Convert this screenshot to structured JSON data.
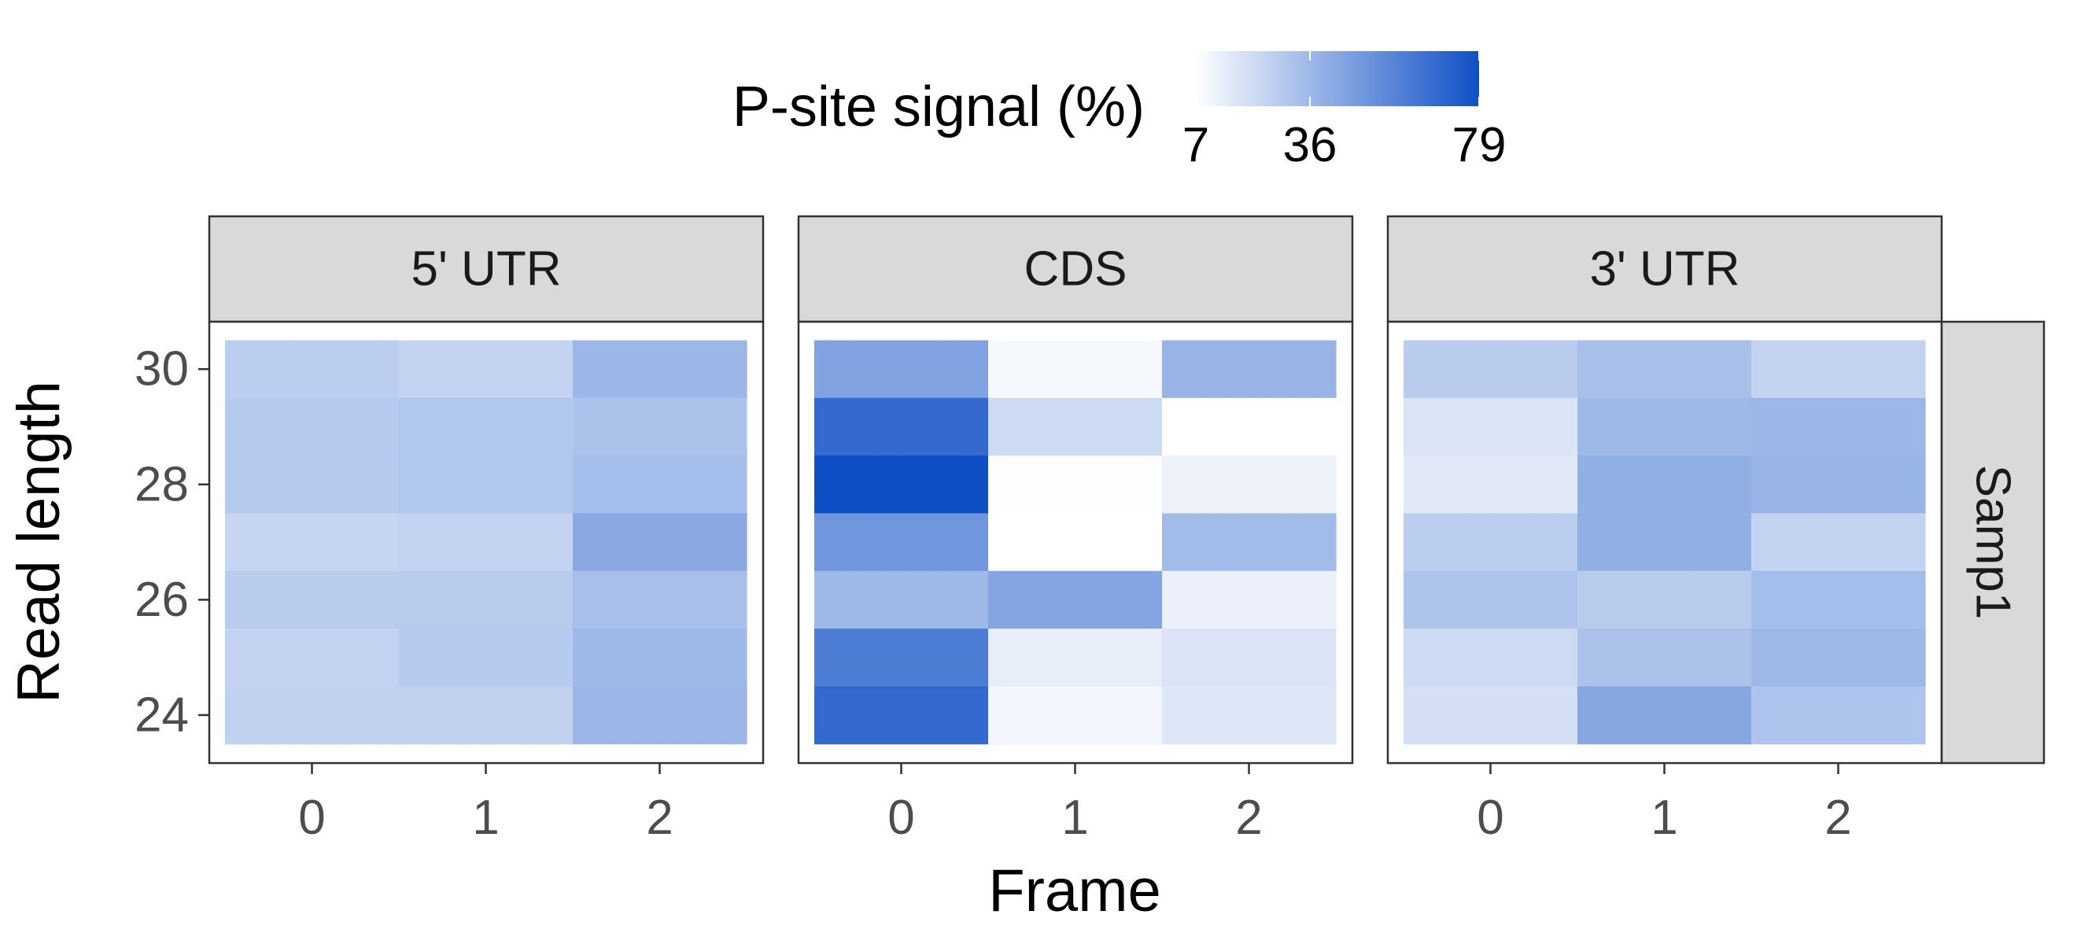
{
  "chart_data": {
    "type": "heatmap",
    "legend": {
      "title": "P-site signal (%)",
      "breaks": [
        7,
        36,
        79
      ],
      "min": 7,
      "max": 79,
      "low_color": "#ffffff",
      "high_color": "#0f4fc6",
      "placement": "top"
    },
    "x": {
      "label": "Frame",
      "categories": [
        0,
        1,
        2
      ],
      "tick_labels": [
        "0",
        "1",
        "2"
      ]
    },
    "y": {
      "label": "Read length",
      "categories": [
        24,
        25,
        26,
        27,
        28,
        29,
        30
      ],
      "tick_values": [
        24,
        26,
        28,
        30
      ],
      "tick_labels": [
        "24",
        "26",
        "28",
        "30"
      ]
    },
    "row_strip": "Samp1",
    "grid": false,
    "panels": [
      {
        "title": "5' UTR",
        "values": [
          {
            "read_length": 30,
            "frame0": 27,
            "frame1": 25,
            "frame2": 37
          },
          {
            "read_length": 29,
            "frame0": 29,
            "frame1": 30,
            "frame2": 32
          },
          {
            "read_length": 28,
            "frame0": 29,
            "frame1": 30,
            "frame2": 34
          },
          {
            "read_length": 27,
            "frame0": 24,
            "frame1": 25,
            "frame2": 42
          },
          {
            "read_length": 26,
            "frame0": 28,
            "frame1": 28,
            "frame2": 33
          },
          {
            "read_length": 25,
            "frame0": 25,
            "frame1": 29,
            "frame2": 36
          },
          {
            "read_length": 24,
            "frame0": 26,
            "frame1": 26,
            "frame2": 37
          }
        ]
      },
      {
        "title": "CDS",
        "values": [
          {
            "read_length": 30,
            "frame0": 45,
            "frame1": 10,
            "frame2": 38
          },
          {
            "read_length": 29,
            "frame0": 68,
            "frame1": 22,
            "frame2": 7
          },
          {
            "read_length": 28,
            "frame0": 79,
            "frame1": 8,
            "frame2": 12
          },
          {
            "read_length": 27,
            "frame0": 50,
            "frame1": 7,
            "frame2": 35
          },
          {
            "read_length": 26,
            "frame0": 36,
            "frame1": 44,
            "frame2": 13
          },
          {
            "read_length": 25,
            "frame0": 60,
            "frame1": 14,
            "frame2": 18
          },
          {
            "read_length": 24,
            "frame0": 68,
            "frame1": 11,
            "frame2": 17
          }
        ]
      },
      {
        "title": "3' UTR",
        "values": [
          {
            "read_length": 30,
            "frame0": 28,
            "frame1": 33,
            "frame2": 25
          },
          {
            "read_length": 29,
            "frame0": 18,
            "frame1": 36,
            "frame2": 37
          },
          {
            "read_length": 28,
            "frame0": 16,
            "frame1": 40,
            "frame2": 38
          },
          {
            "read_length": 27,
            "frame0": 27,
            "frame1": 40,
            "frame2": 25
          },
          {
            "read_length": 26,
            "frame0": 31,
            "frame1": 28,
            "frame2": 34
          },
          {
            "read_length": 25,
            "frame0": 22,
            "frame1": 32,
            "frame2": 36
          },
          {
            "read_length": 24,
            "frame0": 20,
            "frame1": 43,
            "frame2": 31
          }
        ]
      }
    ]
  }
}
